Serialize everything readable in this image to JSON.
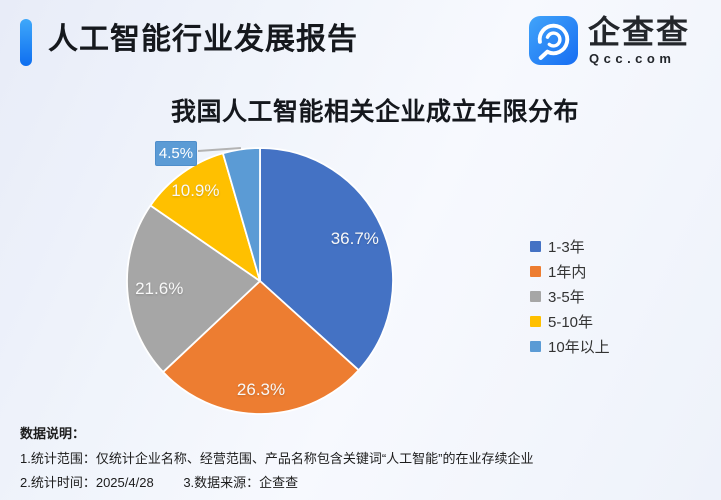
{
  "header": {
    "title": "人工智能行业发展报告"
  },
  "logo": {
    "name": "企查查",
    "domain": "Qcc.com"
  },
  "chart_data": {
    "type": "pie",
    "title": "我国人工智能相关企业成立年限分布",
    "series": [
      {
        "label": "1-3年",
        "value": 36.7,
        "color": "#4472c4"
      },
      {
        "label": "1年内",
        "value": 26.3,
        "color": "#ed7d31"
      },
      {
        "label": "3-5年",
        "value": 21.6,
        "color": "#a6a6a6"
      },
      {
        "label": "5-10年",
        "value": 10.9,
        "color": "#ffc000"
      },
      {
        "label": "10年以上",
        "value": 4.5,
        "color": "#5b9bd5"
      }
    ],
    "value_suffix": "%",
    "start_angle_deg": 0,
    "direction": "clockwise",
    "legend_position": "right",
    "callout": {
      "label": "4.5%",
      "slice_index": 4
    }
  },
  "footnotes": {
    "heading": "数据说明：",
    "scope": "1.统计范围：仅统计企业名称、经营范围、产品名称包含关键词“人工智能”的在业存续企业",
    "time": "2.统计时间：2025/4/28",
    "source": "3.数据来源：企查查"
  },
  "theme": {
    "accent_gradient_start": "#3fa8fa",
    "accent_gradient_end": "#0e6ef0",
    "logo_gradient_start": "#41a4fa",
    "logo_gradient_end": "#176df2",
    "pie_label_color": "#f8f8f8",
    "legend_text_color": "#333333",
    "leader_line_color": "#b3b3b3"
  }
}
